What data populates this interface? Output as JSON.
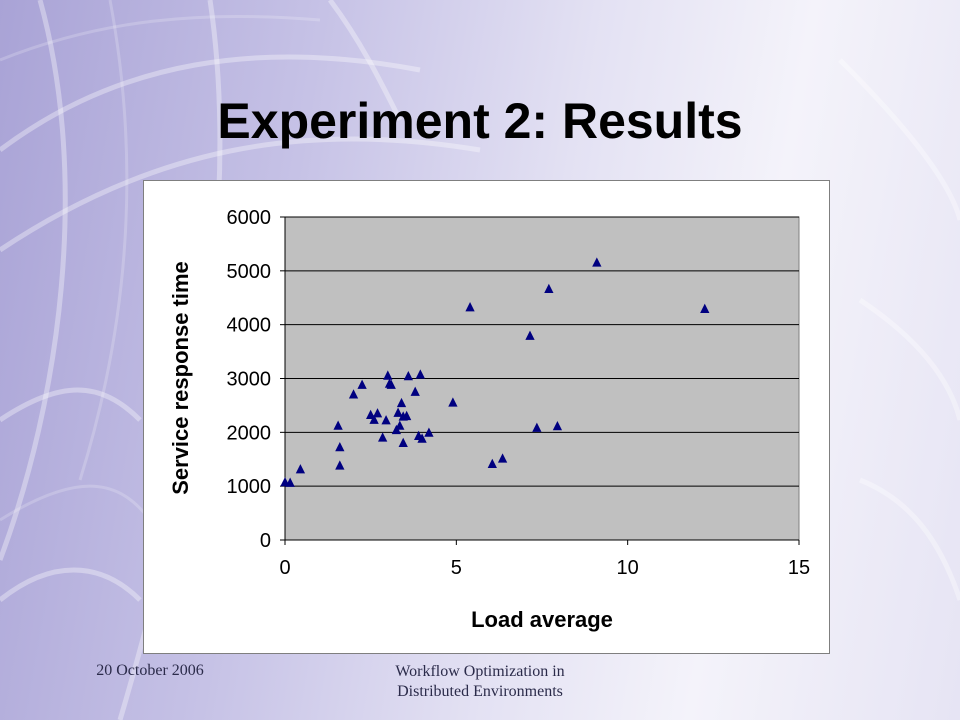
{
  "slide": {
    "title": "Experiment 2: Results",
    "footer_date": "20 October 2006",
    "footer_title_line1": "Workflow Optimization in",
    "footer_title_line2": "Distributed Environments"
  },
  "colors": {
    "plot_area": "#c0c0c0",
    "marker": "#000080",
    "gridline": "#000000"
  },
  "chart_data": {
    "type": "scatter",
    "title": "",
    "xlabel": "Load average",
    "ylabel": "Service response time",
    "xlim": [
      0,
      15
    ],
    "ylim": [
      0,
      6000
    ],
    "xticks": [
      0,
      5,
      10,
      15
    ],
    "yticks": [
      0,
      1000,
      2000,
      3000,
      4000,
      5000,
      6000
    ],
    "grid": "horizontal",
    "legend": "none",
    "marker": "triangle",
    "points": [
      [
        0.0,
        1070
      ],
      [
        0.15,
        1060
      ],
      [
        0.45,
        1310
      ],
      [
        1.55,
        2120
      ],
      [
        1.6,
        1720
      ],
      [
        1.6,
        1380
      ],
      [
        2.0,
        2700
      ],
      [
        2.25,
        2880
      ],
      [
        2.5,
        2320
      ],
      [
        2.6,
        2230
      ],
      [
        2.7,
        2350
      ],
      [
        2.85,
        1900
      ],
      [
        2.95,
        2220
      ],
      [
        3.0,
        3050
      ],
      [
        3.05,
        2900
      ],
      [
        3.1,
        2880
      ],
      [
        3.25,
        2040
      ],
      [
        3.3,
        2360
      ],
      [
        3.35,
        2120
      ],
      [
        3.4,
        2540
      ],
      [
        3.45,
        1800
      ],
      [
        3.45,
        2290
      ],
      [
        3.55,
        2300
      ],
      [
        3.6,
        3040
      ],
      [
        3.8,
        2750
      ],
      [
        3.9,
        1930
      ],
      [
        3.95,
        3070
      ],
      [
        4.0,
        1880
      ],
      [
        4.2,
        1990
      ],
      [
        4.9,
        2550
      ],
      [
        5.4,
        4320
      ],
      [
        6.05,
        1410
      ],
      [
        6.35,
        1510
      ],
      [
        7.15,
        3790
      ],
      [
        7.35,
        2080
      ],
      [
        7.7,
        4660
      ],
      [
        7.95,
        2110
      ],
      [
        9.1,
        5150
      ],
      [
        12.25,
        4290
      ]
    ]
  }
}
